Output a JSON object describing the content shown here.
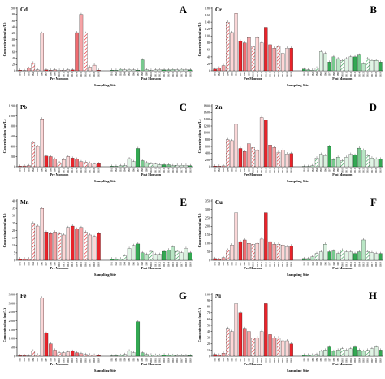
{
  "figure": {
    "series_colors": {
      "pre_monsoon": "#e8232a",
      "post_monsoon": "#33a852"
    },
    "x_axis_title": "Sampling Site",
    "y_axis_title": "Concentration (µg/L)",
    "groups": [
      "Pre Monsoon",
      "Post Monsoon"
    ]
  },
  "chart_data": [
    {
      "panel": "A",
      "metal": "Cd",
      "type": "bar",
      "ylim": [
        0,
        200
      ],
      "yticks": [
        0,
        20,
        40,
        60,
        80,
        100,
        120,
        140,
        160,
        180,
        200
      ],
      "categories": [
        "IB1",
        "IB2",
        "IB3",
        "IB4",
        "IB5",
        "IB6",
        "IB7",
        "IB8",
        "IB9",
        "IB10",
        "IB11",
        "IB12",
        "IB13",
        "IB14",
        "IB15",
        "IB16",
        "IB17",
        "IB18",
        "IB19"
      ],
      "series": [
        {
          "name": "Pre Monsoon",
          "values": [
            2,
            1,
            8,
            25,
            3,
            120,
            3,
            2,
            3,
            2,
            2,
            3,
            3,
            122,
            180,
            120,
            12,
            18,
            2
          ]
        },
        {
          "name": "Post Monsoon",
          "values": [
            2,
            2,
            5,
            3,
            4,
            3,
            2,
            35,
            3,
            2,
            3,
            4,
            3,
            3,
            4,
            3,
            5,
            3,
            3
          ]
        }
      ]
    },
    {
      "panel": "B",
      "metal": "Cr",
      "type": "bar",
      "ylim": [
        0,
        180
      ],
      "yticks": [
        0,
        20,
        40,
        60,
        80,
        100,
        120,
        140,
        160,
        180
      ],
      "categories": [
        "IB1",
        "IB2",
        "IB3",
        "IB4",
        "IB5",
        "IB6",
        "IB7",
        "IB8",
        "IB9",
        "IB10",
        "IB11",
        "IB12",
        "IB13",
        "IB14",
        "IB15",
        "IB16",
        "IB17",
        "IB18",
        "IB19"
      ],
      "series": [
        {
          "name": "Pre Monsoon",
          "values": [
            5,
            8,
            15,
            140,
            110,
            165,
            85,
            80,
            95,
            70,
            95,
            80,
            125,
            75,
            65,
            70,
            50,
            65,
            65
          ]
        },
        {
          "name": "Post Monsoon",
          "values": [
            5,
            3,
            2,
            8,
            55,
            50,
            25,
            40,
            35,
            30,
            35,
            40,
            40,
            45,
            20,
            35,
            30,
            30,
            25
          ]
        }
      ]
    },
    {
      "panel": "C",
      "metal": "Pb",
      "type": "bar",
      "ylim": [
        0,
        1200
      ],
      "yticks": [
        0,
        200,
        400,
        600,
        800,
        1000,
        1200
      ],
      "categories": [
        "IB1",
        "IB2",
        "IB3",
        "IB4",
        "IB5",
        "IB6",
        "IB7",
        "IB8",
        "IB9",
        "IB10",
        "IB11",
        "IB12",
        "IB13",
        "IB14",
        "IB15",
        "IB16",
        "IB17",
        "IB18",
        "IB19"
      ],
      "series": [
        {
          "name": "Pre Monsoon",
          "values": [
            10,
            15,
            20,
            480,
            400,
            940,
            210,
            200,
            150,
            80,
            140,
            200,
            170,
            150,
            100,
            90,
            70,
            50,
            60
          ]
        },
        {
          "name": "Post Monsoon",
          "values": [
            10,
            10,
            20,
            30,
            160,
            100,
            360,
            120,
            80,
            60,
            50,
            40,
            40,
            40,
            20,
            30,
            30,
            30,
            20
          ]
        }
      ]
    },
    {
      "panel": "D",
      "metal": "Zn",
      "type": "bar",
      "ylim": [
        0,
        1800
      ],
      "yticks": [
        0,
        200,
        400,
        600,
        800,
        1000,
        1200,
        1400,
        1600,
        1800
      ],
      "categories": [
        "IB1",
        "IB2",
        "IB3",
        "IB4",
        "IB5",
        "IB6",
        "IB7",
        "IB8",
        "IB9",
        "IB10",
        "IB11",
        "IB12",
        "IB13",
        "IB14",
        "IB15",
        "IB16",
        "IB17",
        "IB18",
        "IB19"
      ],
      "series": [
        {
          "name": "Pre Monsoon",
          "values": [
            20,
            20,
            25,
            800,
            770,
            1250,
            540,
            450,
            680,
            570,
            480,
            1450,
            1380,
            640,
            570,
            430,
            500,
            380,
            390
          ]
        },
        {
          "name": "Post Monsoon",
          "values": [
            10,
            10,
            30,
            260,
            370,
            330,
            600,
            210,
            280,
            180,
            280,
            370,
            340,
            550,
            490,
            330,
            260,
            230,
            230
          ]
        }
      ]
    },
    {
      "panel": "E",
      "metal": "Mn",
      "type": "bar",
      "ylim": [
        0,
        40
      ],
      "yticks": [
        0,
        5,
        10,
        15,
        20,
        25,
        30,
        35,
        40
      ],
      "categories": [
        "IB1",
        "IB2",
        "IB3",
        "IB4",
        "IB5",
        "IB6",
        "IB7",
        "IB8",
        "IB9",
        "IB10",
        "IB11",
        "IB12",
        "IB13",
        "IB14",
        "IB15",
        "IB16",
        "IB17",
        "IB18",
        "IB19"
      ],
      "series": [
        {
          "name": "Pre Monsoon",
          "values": [
            1,
            1,
            1,
            25,
            23,
            35,
            19,
            18,
            19,
            18,
            17,
            22,
            23,
            21,
            22,
            19,
            17,
            16,
            18
          ]
        },
        {
          "name": "Post Monsoon",
          "values": [
            1,
            1,
            1,
            3,
            8,
            10,
            11,
            5,
            4,
            6,
            4,
            4,
            6,
            7,
            9,
            6,
            5,
            8,
            5
          ]
        }
      ]
    },
    {
      "panel": "F",
      "metal": "Cu",
      "type": "bar",
      "ylim": [
        0,
        350
      ],
      "yticks": [
        0,
        50,
        100,
        150,
        200,
        250,
        300,
        350
      ],
      "categories": [
        "IB1",
        "IB2",
        "IB3",
        "IB4",
        "IB5",
        "IB6",
        "IB7",
        "IB8",
        "IB9",
        "IB10",
        "IB11",
        "IB12",
        "IB13",
        "IB14",
        "IB15",
        "IB16",
        "IB17",
        "IB18",
        "IB19"
      ],
      "series": [
        {
          "name": "Pre Monsoon",
          "values": [
            10,
            5,
            15,
            60,
            90,
            280,
            110,
            120,
            100,
            95,
            100,
            125,
            280,
            110,
            95,
            95,
            90,
            80,
            85
          ]
        },
        {
          "name": "Post Monsoon",
          "values": [
            10,
            10,
            20,
            40,
            50,
            95,
            50,
            55,
            40,
            60,
            50,
            50,
            40,
            50,
            120,
            50,
            45,
            40,
            40
          ]
        }
      ]
    },
    {
      "panel": "G",
      "metal": "Fe",
      "type": "bar",
      "ylim": [
        0,
        3500
      ],
      "yticks": [
        0,
        500,
        1000,
        1500,
        2000,
        2500,
        3000,
        3500
      ],
      "categories": [
        "IB1",
        "IB2",
        "IB3",
        "IB4",
        "IB5",
        "IB6",
        "IB7",
        "IB8",
        "IB9",
        "IB10",
        "IB11",
        "IB12",
        "IB13",
        "IB14",
        "IB15",
        "IB16",
        "IB17",
        "IB18",
        "IB19"
      ],
      "series": [
        {
          "name": "Pre Monsoon",
          "values": [
            30,
            40,
            20,
            300,
            80,
            3300,
            1300,
            700,
            350,
            200,
            200,
            240,
            280,
            200,
            150,
            100,
            80,
            60,
            40
          ]
        },
        {
          "name": "Post Monsoon",
          "values": [
            20,
            30,
            50,
            100,
            300,
            200,
            1950,
            200,
            100,
            80,
            60,
            50,
            80,
            70,
            50,
            40,
            40,
            40,
            30
          ]
        }
      ]
    },
    {
      "panel": "H",
      "metal": "Ni",
      "type": "bar",
      "ylim": [
        0,
        100
      ],
      "yticks": [
        0,
        10,
        20,
        30,
        40,
        50,
        60,
        70,
        80,
        90,
        100
      ],
      "categories": [
        "IB1",
        "IB2",
        "IB3",
        "IB4",
        "IB5",
        "IB6",
        "IB7",
        "IB8",
        "IB9",
        "IB10",
        "IB11",
        "IB12",
        "IB13",
        "IB14",
        "IB15",
        "IB16",
        "IB17",
        "IB18",
        "IB19"
      ],
      "series": [
        {
          "name": "Pre Monsoon",
          "values": [
            3,
            2,
            5,
            45,
            40,
            85,
            70,
            45,
            40,
            30,
            30,
            40,
            85,
            35,
            30,
            30,
            25,
            25,
            20
          ]
        },
        {
          "name": "Post Monsoon",
          "values": [
            2,
            2,
            2,
            3,
            8,
            10,
            15,
            8,
            10,
            12,
            10,
            12,
            15,
            10,
            8,
            10,
            12,
            15,
            10
          ]
        }
      ]
    }
  ]
}
